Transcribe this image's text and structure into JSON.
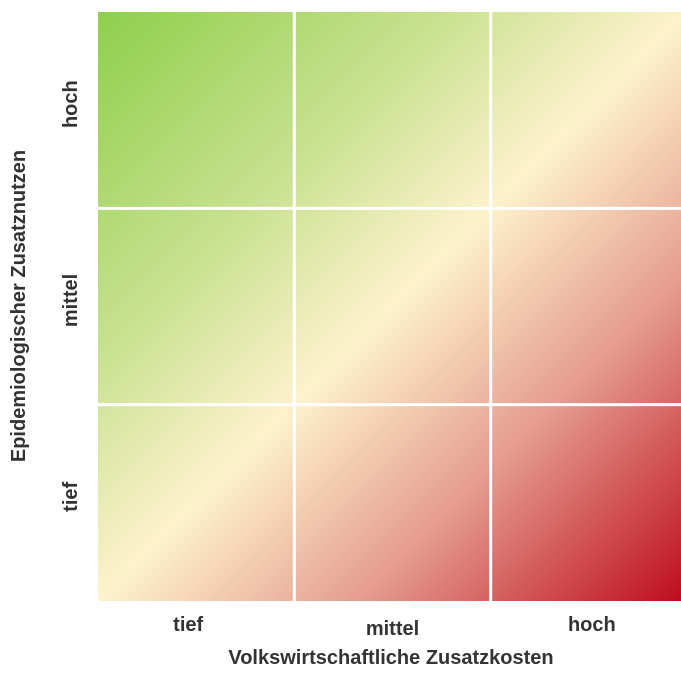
{
  "chart_data": {
    "type": "heatmap",
    "title": "",
    "xlabel": "Volkswirtschaftliche Zusatzkosten",
    "ylabel": "Epidemiologischer Zusatznutzen",
    "x_categories": [
      "tief",
      "mittel",
      "hoch"
    ],
    "y_categories": [
      "tief",
      "mittel",
      "hoch"
    ],
    "grid": true,
    "gradient": {
      "direction": "from top-left (high benefit, low cost) to bottom-right (low benefit, high cost)",
      "colors": [
        "#8fcf4c",
        "#c5e08c",
        "#fdf2cc",
        "#e59d90",
        "#bd0a1c"
      ]
    },
    "cell_separator_color": "#ffffff"
  }
}
